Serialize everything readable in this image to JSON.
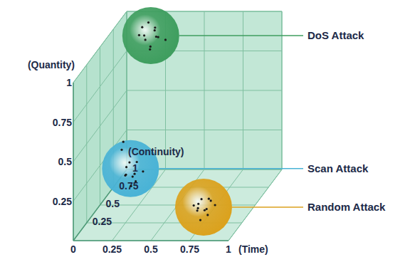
{
  "chart_data": {
    "type": "scatter3d",
    "x_label": "(Time)",
    "y_label": "(Quantity)",
    "z_label": "(Continuity)",
    "xlim": [
      0,
      1
    ],
    "ylim": [
      0,
      1
    ],
    "zlim": [
      0,
      1
    ],
    "xticks": [
      0,
      0.25,
      0.5,
      0.75,
      1
    ],
    "yticks": [
      0.25,
      0.5,
      0.75,
      1
    ],
    "zticks": [
      0.25,
      0.5,
      0.75,
      1
    ],
    "grid": true,
    "series": [
      {
        "name": "DoS Attack",
        "color": "#3f9e5f",
        "x": [
          0.1,
          0.14,
          0.18,
          0.22,
          0.12,
          0.17,
          0.2,
          0.08,
          0.15,
          0.25,
          0.13,
          0.19
        ],
        "y": [
          0.9,
          0.93,
          0.88,
          0.86,
          0.82,
          0.8,
          0.92,
          0.85,
          0.76,
          0.82,
          0.87,
          0.84
        ],
        "z": [
          1,
          1,
          1,
          0.95,
          1,
          0.95,
          0.95,
          1,
          1,
          1,
          0.95,
          1
        ]
      },
      {
        "name": "Scan Attack",
        "color": "#4ab3d6",
        "x": [
          0.17,
          0.21,
          0.24,
          0.15,
          0.19,
          0.23,
          0.18,
          0.26,
          0.14,
          0.15,
          0.2,
          0.22
        ],
        "y": [
          0.24,
          0.18,
          0.22,
          0.17,
          0.27,
          0.15,
          0.21,
          0.19,
          0.35,
          0.4,
          0.12,
          0.25
        ],
        "z": [
          0.5,
          0.5,
          0.45,
          0.55,
          0.5,
          0.5,
          0.45,
          0.55,
          0.5,
          0.5,
          0.5,
          0.55
        ]
      },
      {
        "name": "Random Attack",
        "color": "#dba21e",
        "x": [
          0.72,
          0.76,
          0.79,
          0.7,
          0.74,
          0.78,
          0.81,
          0.73,
          0.77,
          0.69,
          0.75,
          0.8
        ],
        "y": [
          0.12,
          0.08,
          0.11,
          0.07,
          0.15,
          0.05,
          0.09,
          0.1,
          0.13,
          0.11,
          0.04,
          0.14
        ],
        "z": [
          0.25,
          0.25,
          0.2,
          0.3,
          0.25,
          0.25,
          0.3,
          0.2,
          0.3,
          0.25,
          0.2,
          0.25
        ]
      }
    ]
  }
}
